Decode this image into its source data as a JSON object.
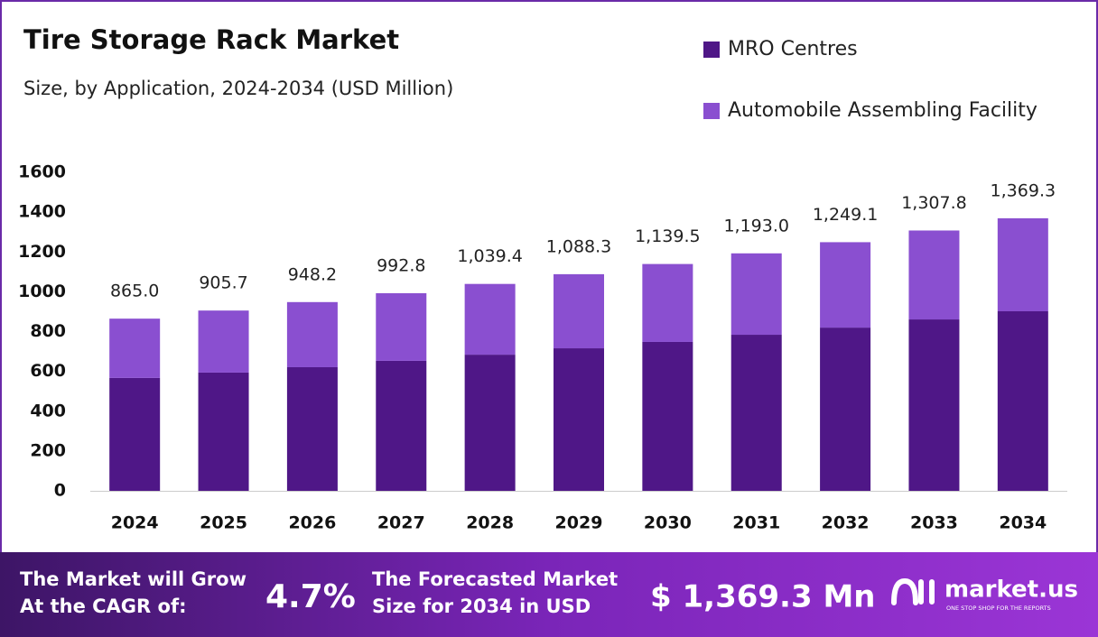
{
  "chart_data": {
    "type": "stacked_bar",
    "title": "Tire Storage Rack Market",
    "subtitle": "Size, by Application, 2024-2034 (USD Million)",
    "categories": [
      "2024",
      "2025",
      "2026",
      "2027",
      "2028",
      "2029",
      "2030",
      "2031",
      "2032",
      "2033",
      "2034"
    ],
    "series": [
      {
        "name": "MRO Centres",
        "color": "#4f1787",
        "values": [
          567,
          594,
          621,
          653,
          684,
          716,
          748,
          784,
          820,
          861,
          902
        ]
      },
      {
        "name": "Automobile Assembling Facility",
        "color": "#8a4fd0",
        "values": [
          298,
          311.7,
          327.2,
          339.8,
          355.4,
          372.3,
          391.5,
          409,
          429.1,
          446.8,
          467.3
        ]
      }
    ],
    "totals": {
      "values": [
        865.0,
        905.7,
        948.2,
        992.8,
        1039.4,
        1088.3,
        1139.5,
        1193.0,
        1249.1,
        1307.8,
        1369.3
      ],
      "value_labels": [
        "865.0",
        "905.7",
        "948.2",
        "992.8",
        "1,039.4",
        "1,088.3",
        "1,139.5",
        "1,193.0",
        "1,249.1",
        "1,307.8",
        "1,369.3"
      ]
    },
    "ylim": [
      0,
      1600
    ],
    "yticks": [
      0,
      200,
      400,
      600,
      800,
      1000,
      1200,
      1400,
      1600
    ],
    "grid": false
  },
  "footer": {
    "cagr_text": [
      "The Market will Grow",
      "At the CAGR of:"
    ],
    "cagr": "4.7%",
    "forecast_text": [
      "The Forecasted Market",
      "Size for 2034 in USD"
    ],
    "forecast_value": "$ 1,369.3 Mn",
    "brand": "market.us",
    "tagline": "ONE STOP SHOP FOR THE REPORTS"
  }
}
